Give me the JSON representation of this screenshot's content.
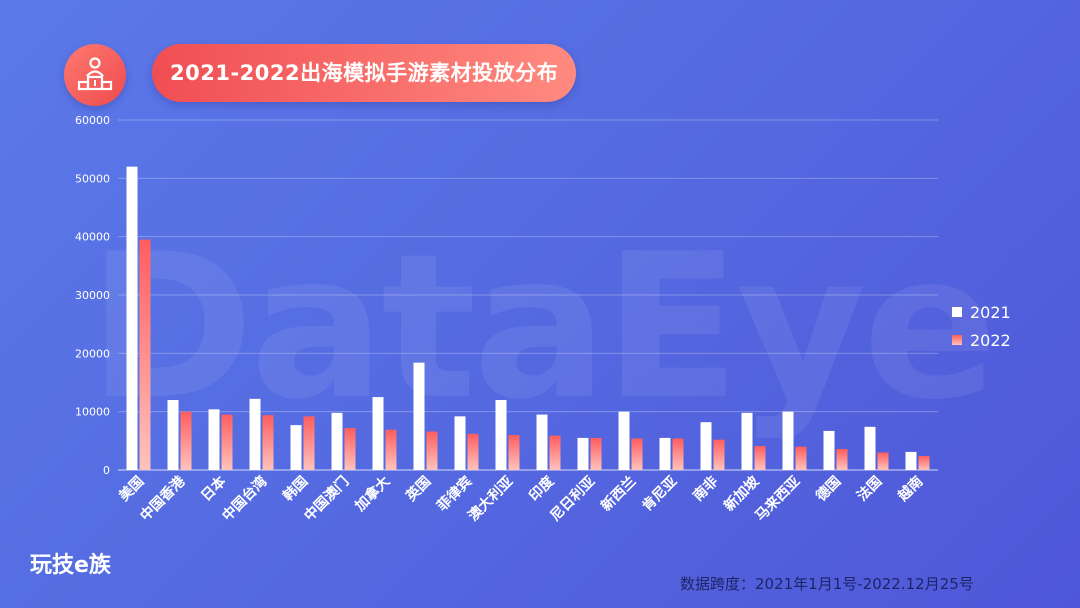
{
  "header": {
    "title": "2021-2022出海模拟手游素材投放分布",
    "icon": "podium-icon"
  },
  "watermark": "DataEye",
  "footer": {
    "logo_text": "玩技e族",
    "note": "数据跨度：2021年1月1号-2022.12月25号"
  },
  "colors": {
    "series_2021": "#ffffff",
    "series_2022_top": "#ff5d5d",
    "series_2022_bottom": "#ffc3bd",
    "accent": "#f04e52"
  },
  "chart_data": {
    "type": "bar",
    "title": "2021-2022出海模拟手游素材投放分布",
    "xlabel": "",
    "ylabel": "",
    "ylim": [
      0,
      60000
    ],
    "yticks": [
      0,
      10000,
      20000,
      30000,
      40000,
      50000,
      60000
    ],
    "grid": true,
    "legend": "right",
    "categories": [
      "美国",
      "中国香港",
      "日本",
      "中国台湾",
      "韩国",
      "中国澳门",
      "加拿大",
      "英国",
      "菲律宾",
      "澳大利亚",
      "印度",
      "尼日利亚",
      "新西兰",
      "肯尼亚",
      "南非",
      "新加坡",
      "马来西亚",
      "德国",
      "法国",
      "越南"
    ],
    "series": [
      {
        "name": "2021",
        "values": [
          52000,
          12000,
          10400,
          12200,
          7700,
          9800,
          12500,
          18400,
          9200,
          12000,
          9500,
          5500,
          10000,
          5500,
          8200,
          9800,
          10000,
          6700,
          7400,
          3100
        ]
      },
      {
        "name": "2022",
        "values": [
          39500,
          10000,
          9500,
          9400,
          9200,
          7200,
          6900,
          6600,
          6200,
          6000,
          5900,
          5500,
          5400,
          5400,
          5200,
          4100,
          4000,
          3600,
          3000,
          2400
        ]
      }
    ]
  }
}
